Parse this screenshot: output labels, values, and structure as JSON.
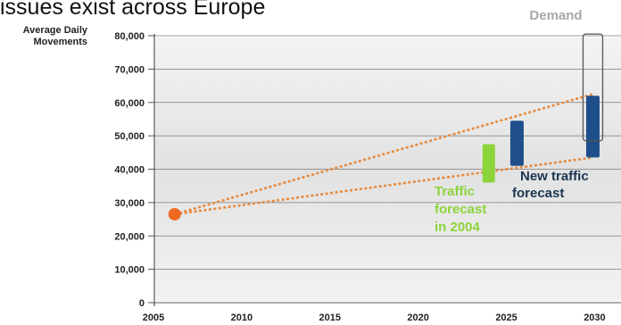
{
  "title": "issues exist across Europe",
  "chart_data": {
    "type": "scatter",
    "ylabel": [
      "Average Daily",
      "Movements"
    ],
    "xlim": [
      2005,
      2032
    ],
    "ylim": [
      0,
      80000
    ],
    "grid": true,
    "x_ticks": [
      "2005",
      "2010",
      "2015",
      "2020",
      "2025",
      "2030"
    ],
    "y_ticks": [
      "0",
      "10,000",
      "20,000",
      "30,000",
      "40,000",
      "50,000",
      "60,000",
      "70,000",
      "80,000"
    ],
    "start_point": {
      "x": 2006.2,
      "y": 26500
    },
    "trend_lines": [
      {
        "from": [
          2006.2,
          26500
        ],
        "to": [
          2029.9,
          62500
        ]
      },
      {
        "from": [
          2006.2,
          26500
        ],
        "to": [
          2029.9,
          43500
        ]
      }
    ],
    "ranges": [
      {
        "label_key": "old",
        "x": 2024.0,
        "low": 36000,
        "high": 47500,
        "color": "#8cd43c"
      },
      {
        "label_key": "new",
        "x": 2025.6,
        "low": 41000,
        "high": 54500,
        "color": "#1f4f8a"
      },
      {
        "label_key": "new",
        "x": 2029.9,
        "low": 43500,
        "high": 62000,
        "color": "#1f4f8a"
      },
      {
        "label_key": "demand",
        "x": 2029.9,
        "low": 48500,
        "high": 80500,
        "color": "none"
      }
    ],
    "annotations": {
      "old": [
        "Traffic",
        "forecast",
        "in 2004"
      ],
      "new": [
        "New traffic",
        "forecast"
      ],
      "demand": "Demand"
    },
    "colors": {
      "start": "#ee6a22",
      "trend": "#e68a3e",
      "old": "#8cd43c",
      "new": "#1f4f8a",
      "demand_label": "#a8a8a8",
      "grid": "#7a7a7a",
      "plot_bg": "#e7e7e7"
    }
  }
}
